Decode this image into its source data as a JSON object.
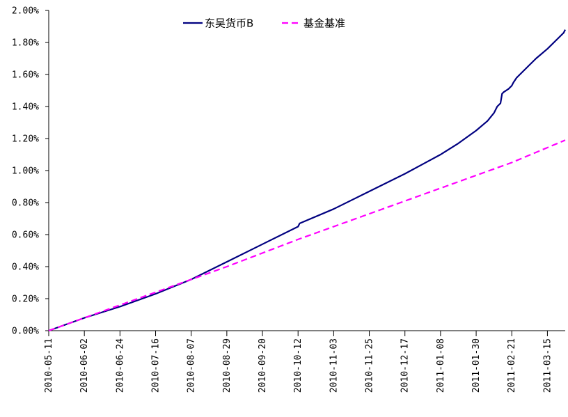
{
  "chart_data": {
    "type": "line",
    "title": "",
    "xlabel": "",
    "ylabel": "",
    "ylim": [
      0,
      2.0
    ],
    "y_ticks": [
      "0.00%",
      "0.20%",
      "0.40%",
      "0.60%",
      "0.80%",
      "1.00%",
      "1.20%",
      "1.40%",
      "1.60%",
      "1.80%",
      "2.00%"
    ],
    "x_ticks": [
      "2010-05-11",
      "2010-06-02",
      "2010-06-24",
      "2010-07-16",
      "2010-08-07",
      "2010-08-29",
      "2010-09-20",
      "2010-10-12",
      "2010-11-03",
      "2010-11-25",
      "2010-12-17",
      "2011-01-08",
      "2011-01-30",
      "2011-02-21",
      "2011-03-15"
    ],
    "x_range": [
      "2010-05-11",
      "2011-03-26"
    ],
    "grid": false,
    "legend_position": "top-center",
    "series": [
      {
        "name": "东吴货币B",
        "color": "#000080",
        "style": "solid",
        "points": [
          [
            "2010-05-11",
            0.0
          ],
          [
            "2010-06-02",
            0.08
          ],
          [
            "2010-06-24",
            0.15
          ],
          [
            "2010-07-16",
            0.23
          ],
          [
            "2010-08-07",
            0.32
          ],
          [
            "2010-08-29",
            0.43
          ],
          [
            "2010-09-20",
            0.54
          ],
          [
            "2010-10-12",
            0.65
          ],
          [
            "2010-10-13",
            0.67
          ],
          [
            "2010-11-03",
            0.76
          ],
          [
            "2010-11-25",
            0.87
          ],
          [
            "2010-12-17",
            0.98
          ],
          [
            "2010-12-28",
            1.04
          ],
          [
            "2011-01-08",
            1.1
          ],
          [
            "2011-01-19",
            1.17
          ],
          [
            "2011-01-30",
            1.25
          ],
          [
            "2011-02-06",
            1.31
          ],
          [
            "2011-02-10",
            1.36
          ],
          [
            "2011-02-12",
            1.4
          ],
          [
            "2011-02-14",
            1.42
          ],
          [
            "2011-02-15",
            1.48
          ],
          [
            "2011-02-16",
            1.49
          ],
          [
            "2011-02-19",
            1.51
          ],
          [
            "2011-02-21",
            1.53
          ],
          [
            "2011-02-22",
            1.55
          ],
          [
            "2011-02-24",
            1.58
          ],
          [
            "2011-03-01",
            1.63
          ],
          [
            "2011-03-08",
            1.7
          ],
          [
            "2011-03-15",
            1.76
          ],
          [
            "2011-03-22",
            1.83
          ],
          [
            "2011-03-25",
            1.86
          ],
          [
            "2011-03-26",
            1.88
          ]
        ]
      },
      {
        "name": "基金基准",
        "color": "#FF00FF",
        "style": "dashed",
        "points": [
          [
            "2010-05-11",
            0.0
          ],
          [
            "2010-08-07",
            0.32
          ],
          [
            "2010-08-29",
            0.4
          ],
          [
            "2010-10-12",
            0.57
          ],
          [
            "2010-11-25",
            0.73
          ],
          [
            "2011-01-08",
            0.89
          ],
          [
            "2011-02-21",
            1.05
          ],
          [
            "2011-03-26",
            1.19
          ]
        ]
      }
    ]
  }
}
